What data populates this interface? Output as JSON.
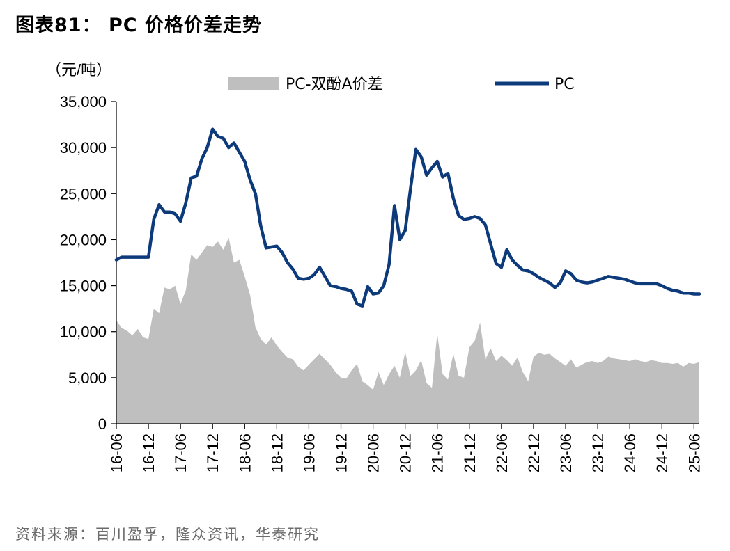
{
  "header": {
    "title": "图表81：  PC 价格价差走势"
  },
  "footer": {
    "source": "资料来源：百川盈孚，隆众资讯，华泰研究"
  },
  "colors": {
    "pc_line": "#0d3a7a",
    "spread_area": "#bfbfbf",
    "rule": "#8a9bb0"
  },
  "chart_data": {
    "type": "line",
    "unit_label": "（元/吨）",
    "ylim": [
      0,
      35000
    ],
    "yticks": [
      0,
      5000,
      10000,
      15000,
      20000,
      25000,
      30000,
      35000
    ],
    "ytick_labels": [
      "0",
      "5,000",
      "10,000",
      "15,000",
      "20,000",
      "25,000",
      "30,000",
      "35,000"
    ],
    "xlim": [
      "2016-06",
      "2025-07"
    ],
    "xticks": [
      "2016-06",
      "2016-12",
      "2017-06",
      "2017-12",
      "2018-06",
      "2018-12",
      "2019-06",
      "2019-12",
      "2020-06",
      "2020-12",
      "2021-06",
      "2021-12",
      "2022-06",
      "2022-12",
      "2023-06",
      "2023-12",
      "2024-06",
      "2024-12",
      "2025-06"
    ],
    "xtick_labels": [
      "16-06",
      "16-12",
      "17-06",
      "17-12",
      "18-06",
      "18-12",
      "19-06",
      "19-12",
      "20-06",
      "20-12",
      "21-06",
      "21-12",
      "22-06",
      "22-12",
      "23-06",
      "23-12",
      "24-06",
      "24-12",
      "25-06"
    ],
    "legend_position": "top",
    "series": [
      {
        "name": "PC-双酚A价差",
        "style": "area",
        "points": [
          [
            "2016-06",
            11200
          ],
          [
            "2016-07",
            10400
          ],
          [
            "2016-08",
            10100
          ],
          [
            "2016-09",
            9600
          ],
          [
            "2016-10",
            10300
          ],
          [
            "2016-11",
            9400
          ],
          [
            "2016-12",
            9200
          ],
          [
            "2017-01",
            12500
          ],
          [
            "2017-02",
            12000
          ],
          [
            "2017-03",
            14800
          ],
          [
            "2017-04",
            14600
          ],
          [
            "2017-05",
            15000
          ],
          [
            "2017-06",
            13000
          ],
          [
            "2017-07",
            14500
          ],
          [
            "2017-08",
            18400
          ],
          [
            "2017-09",
            17800
          ],
          [
            "2017-10",
            18600
          ],
          [
            "2017-11",
            19400
          ],
          [
            "2017-12",
            19200
          ],
          [
            "2018-01",
            19800
          ],
          [
            "2018-02",
            18900
          ],
          [
            "2018-03",
            20200
          ],
          [
            "2018-04",
            17500
          ],
          [
            "2018-05",
            17800
          ],
          [
            "2018-06",
            16000
          ],
          [
            "2018-07",
            14000
          ],
          [
            "2018-08",
            10500
          ],
          [
            "2018-09",
            9200
          ],
          [
            "2018-10",
            8600
          ],
          [
            "2018-11",
            9400
          ],
          [
            "2018-12",
            8500
          ],
          [
            "2019-01",
            7800
          ],
          [
            "2019-02",
            7200
          ],
          [
            "2019-03",
            7000
          ],
          [
            "2019-04",
            6200
          ],
          [
            "2019-05",
            5800
          ],
          [
            "2019-06",
            6400
          ],
          [
            "2019-07",
            7000
          ],
          [
            "2019-08",
            7600
          ],
          [
            "2019-09",
            7000
          ],
          [
            "2019-10",
            6400
          ],
          [
            "2019-11",
            5600
          ],
          [
            "2019-12",
            5000
          ],
          [
            "2020-01",
            4900
          ],
          [
            "2020-02",
            5800
          ],
          [
            "2020-03",
            6500
          ],
          [
            "2020-04",
            4600
          ],
          [
            "2020-05",
            4200
          ],
          [
            "2020-06",
            3700
          ],
          [
            "2020-07",
            5600
          ],
          [
            "2020-08",
            4200
          ],
          [
            "2020-09",
            5400
          ],
          [
            "2020-10",
            6300
          ],
          [
            "2020-11",
            5000
          ],
          [
            "2020-12",
            7800
          ],
          [
            "2021-01",
            5200
          ],
          [
            "2021-02",
            5800
          ],
          [
            "2021-03",
            6900
          ],
          [
            "2021-04",
            4400
          ],
          [
            "2021-05",
            3900
          ],
          [
            "2021-06",
            9800
          ],
          [
            "2021-07",
            5400
          ],
          [
            "2021-08",
            4800
          ],
          [
            "2021-09",
            7600
          ],
          [
            "2021-10",
            5200
          ],
          [
            "2021-11",
            5000
          ],
          [
            "2021-12",
            8300
          ],
          [
            "2022-01",
            9000
          ],
          [
            "2022-02",
            11000
          ],
          [
            "2022-03",
            7000
          ],
          [
            "2022-04",
            8200
          ],
          [
            "2022-05",
            6800
          ],
          [
            "2022-06",
            7400
          ],
          [
            "2022-07",
            6900
          ],
          [
            "2022-08",
            6300
          ],
          [
            "2022-09",
            7200
          ],
          [
            "2022-10",
            5600
          ],
          [
            "2022-11",
            4600
          ],
          [
            "2022-12",
            7300
          ],
          [
            "2023-01",
            7700
          ],
          [
            "2023-02",
            7500
          ],
          [
            "2023-03",
            7600
          ],
          [
            "2023-04",
            7100
          ],
          [
            "2023-05",
            6700
          ],
          [
            "2023-06",
            6300
          ],
          [
            "2023-07",
            7000
          ],
          [
            "2023-08",
            6100
          ],
          [
            "2023-09",
            6400
          ],
          [
            "2023-10",
            6700
          ],
          [
            "2023-11",
            6800
          ],
          [
            "2023-12",
            6600
          ],
          [
            "2024-01",
            6800
          ],
          [
            "2024-02",
            7300
          ],
          [
            "2024-03",
            7100
          ],
          [
            "2024-04",
            7000
          ],
          [
            "2024-05",
            6900
          ],
          [
            "2024-06",
            6800
          ],
          [
            "2024-07",
            7000
          ],
          [
            "2024-08",
            6800
          ],
          [
            "2024-09",
            6700
          ],
          [
            "2024-10",
            6900
          ],
          [
            "2024-11",
            6800
          ],
          [
            "2024-12",
            6600
          ],
          [
            "2025-01",
            6600
          ],
          [
            "2025-02",
            6500
          ],
          [
            "2025-03",
            6600
          ],
          [
            "2025-04",
            6200
          ],
          [
            "2025-05",
            6600
          ],
          [
            "2025-06",
            6500
          ],
          [
            "2025-07",
            6700
          ]
        ]
      },
      {
        "name": "PC",
        "style": "line",
        "points": [
          [
            "2016-06",
            17800
          ],
          [
            "2016-07",
            18100
          ],
          [
            "2016-08",
            18100
          ],
          [
            "2016-09",
            18100
          ],
          [
            "2016-10",
            18100
          ],
          [
            "2016-11",
            18100
          ],
          [
            "2016-12",
            18100
          ],
          [
            "2017-01",
            22200
          ],
          [
            "2017-02",
            23800
          ],
          [
            "2017-03",
            23000
          ],
          [
            "2017-04",
            23000
          ],
          [
            "2017-05",
            22800
          ],
          [
            "2017-06",
            22000
          ],
          [
            "2017-07",
            24000
          ],
          [
            "2017-08",
            26700
          ],
          [
            "2017-09",
            26900
          ],
          [
            "2017-10",
            28800
          ],
          [
            "2017-11",
            30000
          ],
          [
            "2017-12",
            32000
          ],
          [
            "2018-01",
            31200
          ],
          [
            "2018-02",
            31000
          ],
          [
            "2018-03",
            30000
          ],
          [
            "2018-04",
            30500
          ],
          [
            "2018-05",
            29500
          ],
          [
            "2018-06",
            28500
          ],
          [
            "2018-07",
            26500
          ],
          [
            "2018-08",
            25000
          ],
          [
            "2018-09",
            21500
          ],
          [
            "2018-10",
            19100
          ],
          [
            "2018-11",
            19200
          ],
          [
            "2018-12",
            19300
          ],
          [
            "2019-01",
            18600
          ],
          [
            "2019-02",
            17500
          ],
          [
            "2019-03",
            16800
          ],
          [
            "2019-04",
            15800
          ],
          [
            "2019-05",
            15700
          ],
          [
            "2019-06",
            15800
          ],
          [
            "2019-07",
            16200
          ],
          [
            "2019-08",
            17000
          ],
          [
            "2019-09",
            16000
          ],
          [
            "2019-10",
            15000
          ],
          [
            "2019-11",
            14900
          ],
          [
            "2019-12",
            14700
          ],
          [
            "2020-01",
            14600
          ],
          [
            "2020-02",
            14400
          ],
          [
            "2020-03",
            13000
          ],
          [
            "2020-04",
            12800
          ],
          [
            "2020-05",
            14900
          ],
          [
            "2020-06",
            14100
          ],
          [
            "2020-07",
            14200
          ],
          [
            "2020-08",
            15000
          ],
          [
            "2020-09",
            17300
          ],
          [
            "2020-10",
            23700
          ],
          [
            "2020-11",
            20000
          ],
          [
            "2020-12",
            21000
          ],
          [
            "2021-01",
            25500
          ],
          [
            "2021-02",
            29800
          ],
          [
            "2021-03",
            29000
          ],
          [
            "2021-04",
            27000
          ],
          [
            "2021-05",
            27800
          ],
          [
            "2021-06",
            28500
          ],
          [
            "2021-07",
            26800
          ],
          [
            "2021-08",
            27200
          ],
          [
            "2021-09",
            24500
          ],
          [
            "2021-10",
            22600
          ],
          [
            "2021-11",
            22200
          ],
          [
            "2021-12",
            22300
          ],
          [
            "2022-01",
            22500
          ],
          [
            "2022-02",
            22300
          ],
          [
            "2022-03",
            21600
          ],
          [
            "2022-04",
            19500
          ],
          [
            "2022-05",
            17400
          ],
          [
            "2022-06",
            17000
          ],
          [
            "2022-07",
            18900
          ],
          [
            "2022-08",
            17800
          ],
          [
            "2022-09",
            17200
          ],
          [
            "2022-10",
            16700
          ],
          [
            "2022-11",
            16600
          ],
          [
            "2022-12",
            16300
          ],
          [
            "2023-01",
            15900
          ],
          [
            "2023-02",
            15600
          ],
          [
            "2023-03",
            15300
          ],
          [
            "2023-04",
            14800
          ],
          [
            "2023-05",
            15300
          ],
          [
            "2023-06",
            16600
          ],
          [
            "2023-07",
            16300
          ],
          [
            "2023-08",
            15600
          ],
          [
            "2023-09",
            15400
          ],
          [
            "2023-10",
            15300
          ],
          [
            "2023-11",
            15400
          ],
          [
            "2023-12",
            15600
          ],
          [
            "2024-01",
            15800
          ],
          [
            "2024-02",
            16000
          ],
          [
            "2024-03",
            15900
          ],
          [
            "2024-04",
            15800
          ],
          [
            "2024-05",
            15700
          ],
          [
            "2024-06",
            15500
          ],
          [
            "2024-07",
            15300
          ],
          [
            "2024-08",
            15200
          ],
          [
            "2024-09",
            15200
          ],
          [
            "2024-10",
            15200
          ],
          [
            "2024-11",
            15200
          ],
          [
            "2024-12",
            15000
          ],
          [
            "2025-01",
            14700
          ],
          [
            "2025-02",
            14500
          ],
          [
            "2025-03",
            14400
          ],
          [
            "2025-04",
            14200
          ],
          [
            "2025-05",
            14200
          ],
          [
            "2025-06",
            14100
          ],
          [
            "2025-07",
            14100
          ]
        ]
      }
    ]
  }
}
